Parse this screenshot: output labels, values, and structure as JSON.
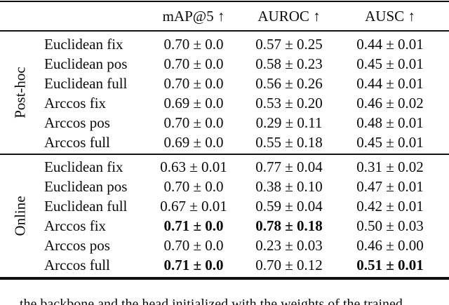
{
  "colors": {
    "background": "#ffffff",
    "text": "#0a0a0a",
    "rule": "#111111"
  },
  "table": {
    "columns": [
      "mAP@5 ↑",
      "AUROC ↑",
      "AUSC ↑"
    ],
    "groups": [
      {
        "label": "Post-hoc",
        "rows": [
          {
            "method": "Euclidean fix",
            "values": [
              "0.70 ± 0.0",
              "0.57 ± 0.25",
              "0.44 ± 0.01"
            ],
            "bold": [
              false,
              false,
              false
            ]
          },
          {
            "method": "Euclidean pos",
            "values": [
              "0.70 ± 0.0",
              "0.58 ± 0.23",
              "0.45 ± 0.01"
            ],
            "bold": [
              false,
              false,
              false
            ]
          },
          {
            "method": "Euclidean full",
            "values": [
              "0.70 ± 0.0",
              "0.56 ± 0.26",
              "0.44 ± 0.01"
            ],
            "bold": [
              false,
              false,
              false
            ]
          },
          {
            "method": "Arccos fix",
            "values": [
              "0.69 ± 0.0",
              "0.53 ± 0.20",
              "0.46 ± 0.02"
            ],
            "bold": [
              false,
              false,
              false
            ]
          },
          {
            "method": "Arccos pos",
            "values": [
              "0.70 ± 0.0",
              "0.29 ± 0.11",
              "0.48 ± 0.01"
            ],
            "bold": [
              false,
              false,
              false
            ]
          },
          {
            "method": "Arccos full",
            "values": [
              "0.69 ± 0.0",
              "0.55 ± 0.18",
              "0.45 ± 0.01"
            ],
            "bold": [
              false,
              false,
              false
            ]
          }
        ]
      },
      {
        "label": "Online",
        "rows": [
          {
            "method": "Euclidean fix",
            "values": [
              "0.63 ± 0.01",
              "0.77 ± 0.04",
              "0.31 ± 0.02"
            ],
            "bold": [
              false,
              false,
              false
            ]
          },
          {
            "method": "Euclidean pos",
            "values": [
              "0.70 ± 0.0",
              "0.38 ± 0.10",
              "0.47 ± 0.01"
            ],
            "bold": [
              false,
              false,
              false
            ]
          },
          {
            "method": "Euclidean full",
            "values": [
              "0.67 ± 0.01",
              "0.59 ± 0.04",
              "0.42 ± 0.01"
            ],
            "bold": [
              false,
              false,
              false
            ]
          },
          {
            "method": "Arccos fix",
            "values": [
              "0.71 ± 0.0",
              "0.78 ± 0.18",
              "0.50 ± 0.03"
            ],
            "bold": [
              true,
              true,
              false
            ]
          },
          {
            "method": "Arccos pos",
            "values": [
              "0.70 ± 0.0",
              "0.23 ± 0.03",
              "0.46 ± 0.00"
            ],
            "bold": [
              false,
              false,
              false
            ]
          },
          {
            "method": "Arccos full",
            "values": [
              "0.71 ± 0.0",
              "0.70 ± 0.12",
              "0.51 ± 0.01"
            ],
            "bold": [
              true,
              false,
              true
            ]
          }
        ]
      }
    ]
  },
  "caption_fragment": "the backbone and the head initialized with the weights of the trained"
}
